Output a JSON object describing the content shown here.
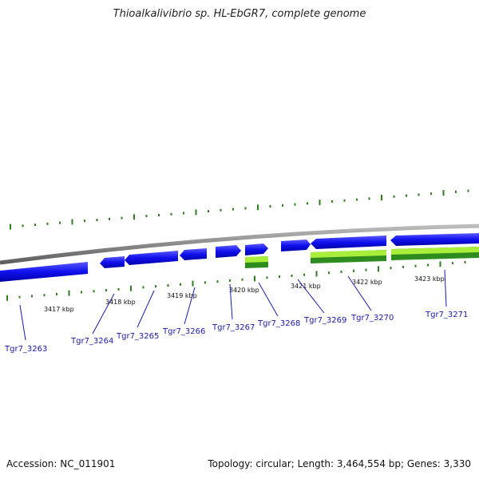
{
  "title": "Thioalkalivibrio sp. HL-EbGR7, complete genome",
  "accession_text": "Accession: NC_011901",
  "summary_text": "Topology: circular; Length: 3,464,554 bp; Genes: 3,330",
  "colors": {
    "backbone": "#8a8a8a",
    "gene": "#1a1aee",
    "tick": "#2e7d1e",
    "label": "#1a1aa6",
    "leader": "#1a1aa6",
    "feature_light": "#a8ee3a",
    "feature_dark": "#2e8b1e"
  },
  "kbp_labels": [
    {
      "text": "3417 kbp"
    },
    {
      "text": "3418 kbp"
    },
    {
      "text": "3419 kbp"
    },
    {
      "text": "3420 kbp"
    },
    {
      "text": "3421 kbp"
    },
    {
      "text": "3422 kbp"
    },
    {
      "text": "3423 kbp"
    }
  ],
  "genes": [
    {
      "label": "Tgr7_3263"
    },
    {
      "label": "Tgr7_3264"
    },
    {
      "label": "Tgr7_3265"
    },
    {
      "label": "Tgr7_3266"
    },
    {
      "label": "Tgr7_3267"
    },
    {
      "label": "Tgr7_3268"
    },
    {
      "label": "Tgr7_3269"
    },
    {
      "label": "Tgr7_3270"
    },
    {
      "label": "Tgr7_3271"
    }
  ]
}
